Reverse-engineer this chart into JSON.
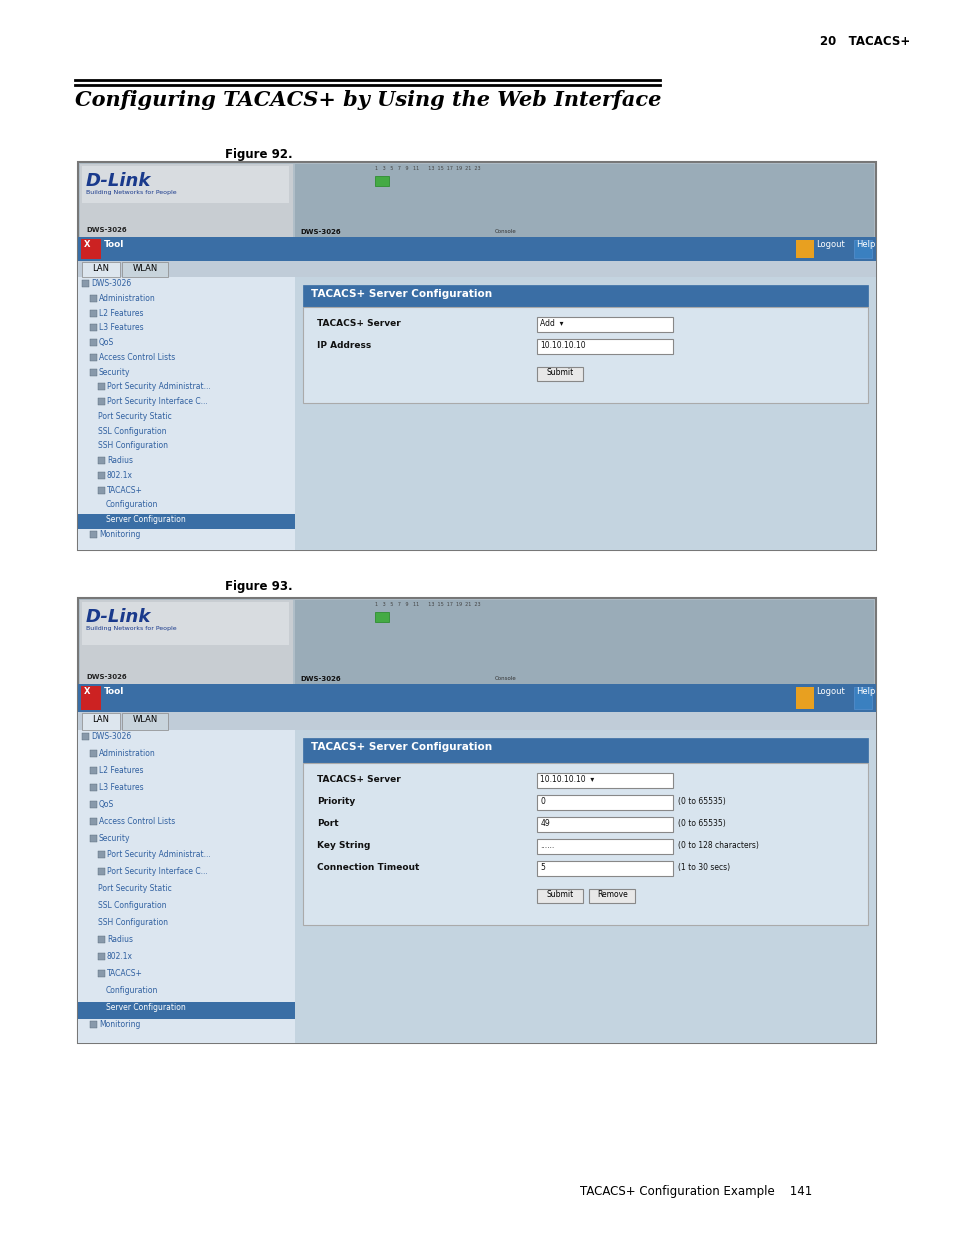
{
  "bg_color": "#ffffff",
  "header_text": "20   TACACS+",
  "title_text": "Configuring TACACS+ by Using the Web Interface",
  "figure1_label": "Figure 92.",
  "figure2_label": "Figure 93.",
  "footer_text": "TACACS+ Configuration Example    141",
  "fig1": {
    "fields": [
      {
        "label": "TACACS+ Server",
        "value": "Add  ▾"
      },
      {
        "label": "IP Address",
        "value": "10.10.10.10"
      }
    ],
    "button": "Submit",
    "nav_items": [
      {
        "text": "DWS-3026",
        "indent": 0,
        "icon": true
      },
      {
        "text": "Administration",
        "indent": 1,
        "icon": true
      },
      {
        "text": "L2 Features",
        "indent": 1,
        "icon": true
      },
      {
        "text": "L3 Features",
        "indent": 1,
        "icon": true
      },
      {
        "text": "QoS",
        "indent": 1,
        "icon": true
      },
      {
        "text": "Access Control Lists",
        "indent": 1,
        "icon": true
      },
      {
        "text": "Security",
        "indent": 1,
        "icon": true
      },
      {
        "text": "Port Security Administrat...",
        "indent": 2,
        "icon": true
      },
      {
        "text": "Port Security Interface C...",
        "indent": 2,
        "icon": true
      },
      {
        "text": "Port Security Static",
        "indent": 2,
        "icon": false
      },
      {
        "text": "SSL Configuration",
        "indent": 2,
        "icon": false
      },
      {
        "text": "SSH Configuration",
        "indent": 2,
        "icon": false
      },
      {
        "text": "Radius",
        "indent": 2,
        "icon": true
      },
      {
        "text": "802.1x",
        "indent": 2,
        "icon": true
      },
      {
        "text": "TACACS+",
        "indent": 2,
        "icon": true
      },
      {
        "text": "Configuration",
        "indent": 3,
        "icon": false
      },
      {
        "text": "Server Configuration",
        "indent": 3,
        "icon": false,
        "selected": true
      },
      {
        "text": "Monitoring",
        "indent": 1,
        "icon": true
      }
    ]
  },
  "fig2": {
    "fields": [
      {
        "label": "TACACS+ Server",
        "value": "10.10.10.10  ▾"
      },
      {
        "label": "Priority",
        "value": "0",
        "hint": "(0 to 65535)"
      },
      {
        "label": "Port",
        "value": "49",
        "hint": "(0 to 65535)"
      },
      {
        "label": "Key String",
        "value": "......",
        "hint": "(0 to 128 characters)"
      },
      {
        "label": "Connection Timeout",
        "value": "5",
        "hint": "(1 to 30 secs)"
      }
    ],
    "buttons": [
      "Submit",
      "Remove"
    ],
    "nav_items": [
      {
        "text": "DWS-3026",
        "indent": 0,
        "icon": true
      },
      {
        "text": "Administration",
        "indent": 1,
        "icon": true
      },
      {
        "text": "L2 Features",
        "indent": 1,
        "icon": true
      },
      {
        "text": "L3 Features",
        "indent": 1,
        "icon": true
      },
      {
        "text": "QoS",
        "indent": 1,
        "icon": true
      },
      {
        "text": "Access Control Lists",
        "indent": 1,
        "icon": true
      },
      {
        "text": "Security",
        "indent": 1,
        "icon": true
      },
      {
        "text": "Port Security Administrat...",
        "indent": 2,
        "icon": true
      },
      {
        "text": "Port Security Interface C...",
        "indent": 2,
        "icon": true
      },
      {
        "text": "Port Security Static",
        "indent": 2,
        "icon": false
      },
      {
        "text": "SSL Configuration",
        "indent": 2,
        "icon": false
      },
      {
        "text": "SSH Configuration",
        "indent": 2,
        "icon": false
      },
      {
        "text": "Radius",
        "indent": 2,
        "icon": true
      },
      {
        "text": "802.1x",
        "indent": 2,
        "icon": true
      },
      {
        "text": "TACACS+",
        "indent": 2,
        "icon": true
      },
      {
        "text": "Configuration",
        "indent": 3,
        "icon": false
      },
      {
        "text": "Server Configuration",
        "indent": 3,
        "icon": false,
        "selected": true
      },
      {
        "text": "Monitoring",
        "indent": 1,
        "icon": true
      }
    ]
  }
}
